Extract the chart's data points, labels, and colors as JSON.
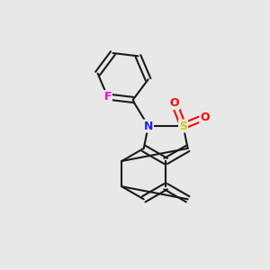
{
  "bg_color": "#e8e8e8",
  "bond_color": "#1a1a1a",
  "N_color": "#2020ff",
  "S_color": "#cccc00",
  "O_color": "#ff0000",
  "F_color": "#ee00ee",
  "line_width": 1.5,
  "dbo": 0.012,
  "figsize": [
    3.0,
    3.0
  ],
  "dpi": 100,
  "xlim": [
    0.0,
    1.0
  ],
  "ylim": [
    0.0,
    1.0
  ]
}
